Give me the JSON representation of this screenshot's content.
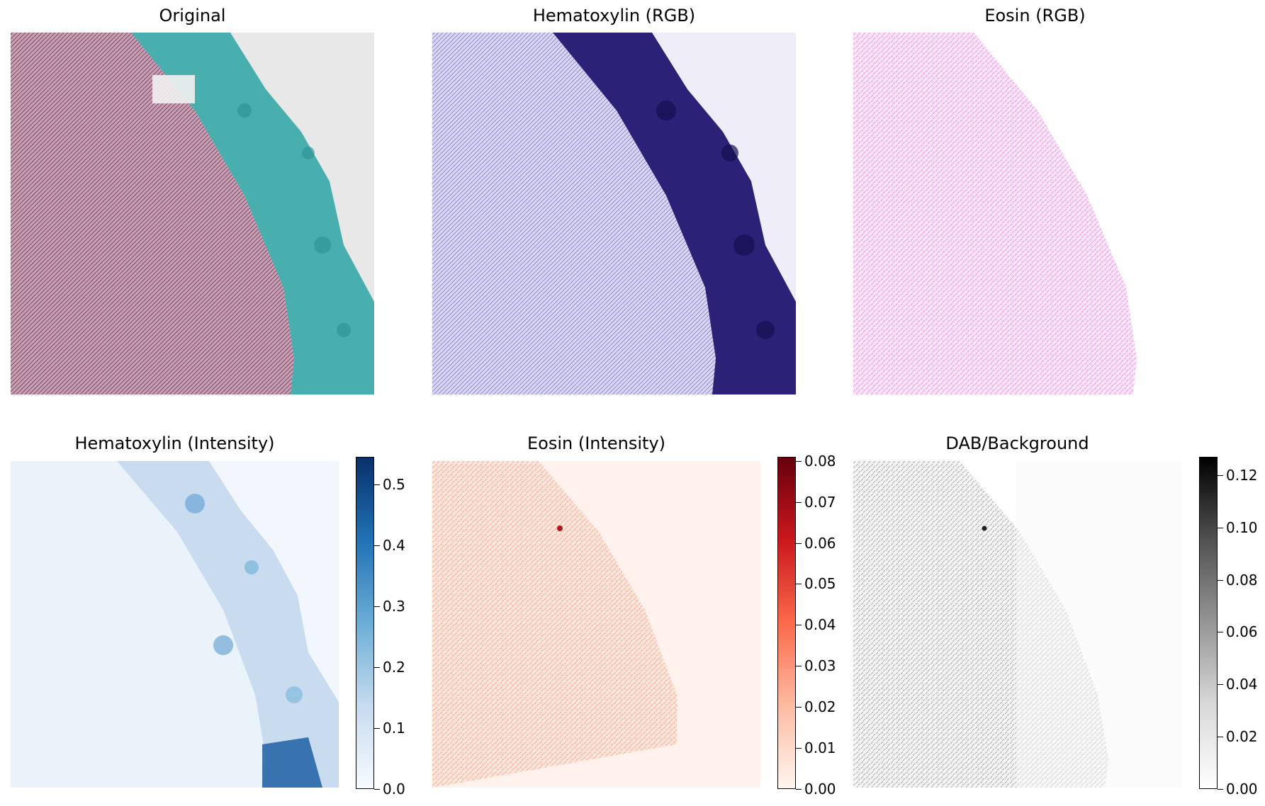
{
  "panels": {
    "original": {
      "title": "Original"
    },
    "hema_rgb": {
      "title": "Hematoxylin (RGB)"
    },
    "eosin_rgb": {
      "title": "Eosin (RGB)"
    },
    "hema_intensity": {
      "title": "Hematoxylin (Intensity)",
      "colormap": [
        "#f7fbff",
        "#c6dbef",
        "#6baed6",
        "#2171b5",
        "#08306b"
      ],
      "colorbar_ticks": [
        "0.0",
        "0.1",
        "0.2",
        "0.3",
        "0.4",
        "0.5"
      ],
      "colorbar_range": [
        0,
        0.545
      ]
    },
    "eosin_intensity": {
      "title": "Eosin (Intensity)",
      "colormap": [
        "#fff5f0",
        "#fcbba1",
        "#fb6a4a",
        "#cb181d",
        "#67000d"
      ],
      "colorbar_ticks": [
        "0.00",
        "0.01",
        "0.02",
        "0.03",
        "0.04",
        "0.05",
        "0.06",
        "0.07",
        "0.08"
      ],
      "colorbar_range": [
        0,
        0.081
      ]
    },
    "dab_background": {
      "title": "DAB/Background",
      "colormap": [
        "#ffffff",
        "#d9d9d9",
        "#969696",
        "#525252",
        "#000000"
      ],
      "colorbar_ticks": [
        "0.00",
        "0.02",
        "0.04",
        "0.06",
        "0.08",
        "0.10",
        "0.12"
      ],
      "colorbar_range": [
        0,
        0.127
      ]
    }
  },
  "colors": {
    "tissue_original": "#b07a95",
    "mount_original": "#3aa8a8",
    "hema_dark": "#1c1560",
    "hema_light": "#e6e4f5",
    "eosin_pink": "#e98ee0"
  }
}
